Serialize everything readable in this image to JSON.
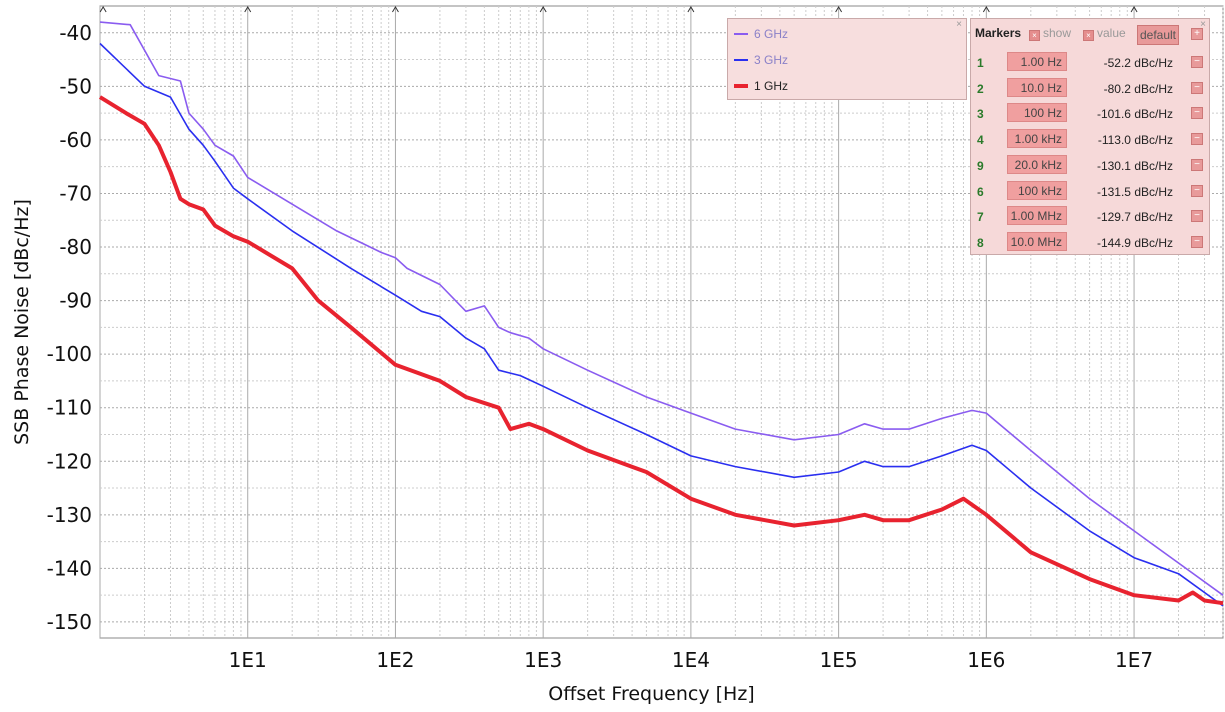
{
  "chart_data": {
    "type": "line",
    "title": "",
    "xlabel": "Offset Frequency [Hz]",
    "ylabel": "SSB Phase Noise [dBc/Hz]",
    "xscale": "log",
    "xlim": [
      1,
      40000000
    ],
    "ylim": [
      -153,
      -35
    ],
    "xticks": [
      {
        "value": 10,
        "label": "1E1"
      },
      {
        "value": 100,
        "label": "1E2"
      },
      {
        "value": 1000,
        "label": "1E3"
      },
      {
        "value": 10000,
        "label": "1E4"
      },
      {
        "value": 100000,
        "label": "1E5"
      },
      {
        "value": 1000000,
        "label": "1E6"
      },
      {
        "value": 10000000,
        "label": "1E7"
      }
    ],
    "yticks": [
      -40,
      -50,
      -60,
      -70,
      -80,
      -90,
      -100,
      -110,
      -120,
      -130,
      -140,
      -150
    ],
    "grid": true,
    "legend_position": "top-right",
    "series": [
      {
        "name": "6 GHz",
        "color": "#8a5cf0",
        "width": 1.6,
        "points": [
          [
            1,
            -38
          ],
          [
            1.6,
            -38.5
          ],
          [
            2.5,
            -48
          ],
          [
            3.5,
            -49
          ],
          [
            4,
            -55
          ],
          [
            5,
            -58
          ],
          [
            6,
            -61
          ],
          [
            8,
            -63
          ],
          [
            10,
            -67
          ],
          [
            20,
            -72
          ],
          [
            40,
            -77
          ],
          [
            80,
            -81
          ],
          [
            100,
            -82
          ],
          [
            120,
            -84
          ],
          [
            200,
            -87
          ],
          [
            300,
            -92
          ],
          [
            400,
            -91
          ],
          [
            500,
            -95
          ],
          [
            600,
            -96
          ],
          [
            800,
            -97
          ],
          [
            1000,
            -99
          ],
          [
            2000,
            -103
          ],
          [
            5000,
            -108
          ],
          [
            10000,
            -111
          ],
          [
            20000,
            -114
          ],
          [
            50000,
            -116
          ],
          [
            100000,
            -115
          ],
          [
            150000,
            -113
          ],
          [
            200000,
            -114
          ],
          [
            300000,
            -114
          ],
          [
            500000,
            -112
          ],
          [
            800000,
            -110.5
          ],
          [
            1000000,
            -111
          ],
          [
            2000000,
            -118
          ],
          [
            5000000,
            -127
          ],
          [
            10000000,
            -133
          ],
          [
            20000000,
            -139
          ],
          [
            40000000,
            -145
          ]
        ]
      },
      {
        "name": "3 GHz",
        "color": "#2a2ff0",
        "width": 1.6,
        "points": [
          [
            1,
            -42
          ],
          [
            2,
            -50
          ],
          [
            3,
            -52
          ],
          [
            4,
            -58
          ],
          [
            5,
            -61
          ],
          [
            6,
            -64
          ],
          [
            8,
            -69
          ],
          [
            10,
            -71
          ],
          [
            20,
            -77
          ],
          [
            50,
            -84
          ],
          [
            100,
            -89
          ],
          [
            150,
            -92
          ],
          [
            200,
            -93
          ],
          [
            300,
            -97
          ],
          [
            400,
            -99
          ],
          [
            500,
            -103
          ],
          [
            700,
            -104
          ],
          [
            1000,
            -106
          ],
          [
            2000,
            -110
          ],
          [
            5000,
            -115
          ],
          [
            10000,
            -119
          ],
          [
            20000,
            -121
          ],
          [
            50000,
            -123
          ],
          [
            100000,
            -122
          ],
          [
            150000,
            -120
          ],
          [
            200000,
            -121
          ],
          [
            300000,
            -121
          ],
          [
            500000,
            -119
          ],
          [
            800000,
            -117
          ],
          [
            1000000,
            -118
          ],
          [
            2000000,
            -125
          ],
          [
            5000000,
            -133
          ],
          [
            10000000,
            -138
          ],
          [
            20000000,
            -141
          ],
          [
            40000000,
            -147
          ]
        ]
      },
      {
        "name": "1 GHz",
        "color": "#e8232f",
        "width": 4,
        "points": [
          [
            1,
            -52
          ],
          [
            1.5,
            -55
          ],
          [
            2,
            -57
          ],
          [
            2.5,
            -61
          ],
          [
            3,
            -66
          ],
          [
            3.5,
            -71
          ],
          [
            4,
            -72
          ],
          [
            5,
            -73
          ],
          [
            6,
            -76
          ],
          [
            8,
            -78
          ],
          [
            10,
            -79
          ],
          [
            20,
            -84
          ],
          [
            30,
            -90
          ],
          [
            50,
            -95
          ],
          [
            100,
            -102
          ],
          [
            200,
            -105
          ],
          [
            300,
            -108
          ],
          [
            500,
            -110
          ],
          [
            600,
            -114
          ],
          [
            800,
            -113
          ],
          [
            1000,
            -114
          ],
          [
            2000,
            -118
          ],
          [
            5000,
            -122
          ],
          [
            10000,
            -127
          ],
          [
            20000,
            -130
          ],
          [
            50000,
            -132
          ],
          [
            100000,
            -131
          ],
          [
            150000,
            -130
          ],
          [
            200000,
            -131
          ],
          [
            300000,
            -131
          ],
          [
            500000,
            -129
          ],
          [
            700000,
            -127
          ],
          [
            1000000,
            -130
          ],
          [
            2000000,
            -137
          ],
          [
            5000000,
            -142
          ],
          [
            10000000,
            -145
          ],
          [
            20000000,
            -146
          ],
          [
            25000000,
            -144.5
          ],
          [
            30000000,
            -146
          ],
          [
            40000000,
            -146.5
          ]
        ]
      }
    ],
    "top_tick_marks": [
      1.05,
      10,
      100,
      1000,
      10000,
      100000,
      1000000,
      10000000
    ]
  },
  "legend": {
    "items": [
      {
        "label": "6 GHz",
        "color": "#8a5cf0"
      },
      {
        "label": "3 GHz",
        "color": "#2a2ff0"
      },
      {
        "label": "1 GHz",
        "color": "#e8232f"
      }
    ],
    "close": "×"
  },
  "markers": {
    "title": "Markers",
    "show_label": "show",
    "value_label": "value",
    "default_label": "default",
    "checkbox_glyph": "×",
    "add_glyph": "+",
    "remove_glyph": "−",
    "close": "×",
    "rows": [
      {
        "num": "1",
        "freq": "1.00 Hz",
        "value": "-52.2 dBc/Hz"
      },
      {
        "num": "2",
        "freq": "10.0 Hz",
        "value": "-80.2 dBc/Hz"
      },
      {
        "num": "3",
        "freq": "100 Hz",
        "value": "-101.6 dBc/Hz"
      },
      {
        "num": "4",
        "freq": "1.00 kHz",
        "value": "-113.0 dBc/Hz"
      },
      {
        "num": "9",
        "freq": "20.0 kHz",
        "value": "-130.1 dBc/Hz"
      },
      {
        "num": "6",
        "freq": "100 kHz",
        "value": "-131.5 dBc/Hz"
      },
      {
        "num": "7",
        "freq": "1.00 MHz",
        "value": "-129.7 dBc/Hz"
      },
      {
        "num": "8",
        "freq": "10.0 MHz",
        "value": "-144.9 dBc/Hz"
      }
    ]
  }
}
